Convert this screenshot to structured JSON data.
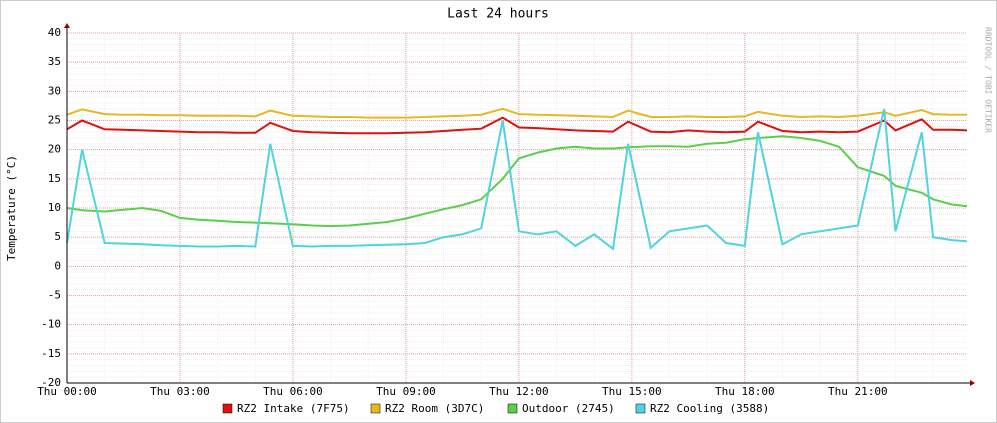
{
  "chart_data": {
    "type": "line",
    "title": "Last 24 hours",
    "y_label": "Temperature (°C)",
    "watermark": "RRDTOOL / TOBI OETIKER",
    "x": [
      0,
      0.4,
      1,
      1.5,
      2,
      2.5,
      3,
      3.5,
      4,
      4.5,
      5,
      5.4,
      6,
      6.5,
      7,
      7.5,
      8,
      8.5,
      9,
      9.5,
      10,
      10.5,
      11,
      11.57,
      12,
      12.5,
      13,
      13.5,
      14,
      14.5,
      14.9,
      15.5,
      16,
      16.5,
      17,
      17.5,
      18,
      18.35,
      19,
      19.5,
      20,
      20.5,
      21,
      21.7,
      22,
      22.7,
      23,
      23.5,
      23.9
    ],
    "xlim": [
      0,
      23.9
    ],
    "xticks": [
      {
        "value": 0,
        "label": "Thu 00:00"
      },
      {
        "value": 3,
        "label": "Thu 03:00"
      },
      {
        "value": 6,
        "label": "Thu 06:00"
      },
      {
        "value": 9,
        "label": "Thu 09:00"
      },
      {
        "value": 12,
        "label": "Thu 12:00"
      },
      {
        "value": 15,
        "label": "Thu 15:00"
      },
      {
        "value": 18,
        "label": "Thu 18:00"
      },
      {
        "value": 21,
        "label": "Thu 21:00"
      }
    ],
    "ylim": [
      -20,
      40
    ],
    "yticks": [
      -20,
      -15,
      -10,
      -5,
      0,
      5,
      10,
      15,
      20,
      25,
      30,
      35,
      40
    ],
    "grid": true,
    "series": [
      {
        "name": "RZ2 Intake (7F75)",
        "color": "#e01010",
        "values": [
          23.5,
          25,
          23.5,
          23.4,
          23.3,
          23.2,
          23.1,
          23,
          23,
          22.9,
          22.9,
          24.6,
          23.2,
          23,
          22.9,
          22.8,
          22.8,
          22.8,
          22.9,
          23,
          23.2,
          23.4,
          23.6,
          25.5,
          23.8,
          23.7,
          23.5,
          23.3,
          23.2,
          23.1,
          24.8,
          23.1,
          23,
          23.3,
          23.1,
          23,
          23.1,
          24.8,
          23.2,
          23,
          23.1,
          23,
          23.1,
          25,
          23.3,
          25.2,
          23.4,
          23.4,
          23.3
        ]
      },
      {
        "name": "RZ2 Room (3D7C)",
        "color": "#e8b820",
        "values": [
          26,
          26.9,
          26.1,
          26,
          26,
          25.9,
          25.9,
          25.8,
          25.8,
          25.8,
          25.7,
          26.7,
          25.8,
          25.7,
          25.6,
          25.6,
          25.5,
          25.5,
          25.5,
          25.6,
          25.7,
          25.8,
          26,
          27,
          26.1,
          26,
          25.9,
          25.8,
          25.7,
          25.6,
          26.7,
          25.6,
          25.6,
          25.7,
          25.6,
          25.6,
          25.7,
          26.5,
          25.8,
          25.6,
          25.7,
          25.6,
          25.8,
          26.4,
          25.8,
          26.8,
          26.1,
          26,
          26
        ]
      },
      {
        "name": "Outdoor (2745)",
        "color": "#5ad04a",
        "values": [
          10,
          9.6,
          9.4,
          9.7,
          10,
          9.5,
          8.3,
          8,
          7.8,
          7.6,
          7.5,
          7.4,
          7.2,
          7,
          6.9,
          7,
          7.3,
          7.6,
          8.2,
          9,
          9.8,
          10.5,
          11.5,
          15,
          18.5,
          19.5,
          20.2,
          20.5,
          20.2,
          20.2,
          20.4,
          20.6,
          20.6,
          20.5,
          21,
          21.2,
          21.8,
          22,
          22.3,
          22,
          21.5,
          20.5,
          17,
          15.5,
          13.8,
          12.6,
          11.5,
          10.6,
          10.3
        ]
      },
      {
        "name": "RZ2 Cooling (3588)",
        "color": "#4dd4e0",
        "values": [
          4,
          20,
          4,
          3.9,
          3.8,
          3.6,
          3.5,
          3.4,
          3.4,
          3.5,
          3.4,
          21,
          3.5,
          3.4,
          3.5,
          3.5,
          3.6,
          3.7,
          3.8,
          4,
          5,
          5.5,
          6.5,
          25,
          6,
          5.5,
          6,
          3.5,
          5.5,
          3,
          21,
          3.2,
          6,
          6.5,
          7,
          4,
          3.5,
          23,
          3.8,
          5.5,
          6,
          6.5,
          7,
          27,
          6,
          23,
          5,
          4.5,
          4.3
        ]
      }
    ],
    "legend": "bottom"
  }
}
